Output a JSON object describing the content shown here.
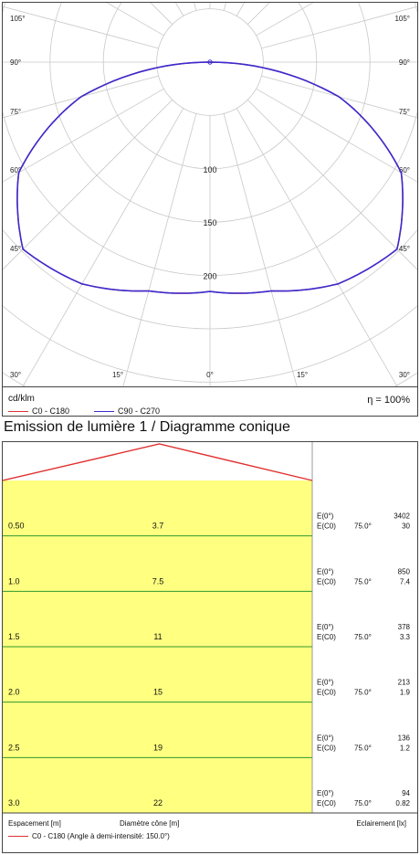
{
  "polar": {
    "unit_label": "cd/klm",
    "efficiency_label": "η = 100%",
    "angle_labels_left": [
      "105°",
      "90°",
      "75°",
      "60°",
      "45°",
      "30°"
    ],
    "angle_labels_right": [
      "105°",
      "90°",
      "75°",
      "60°",
      "45°",
      "30°"
    ],
    "angle_labels_bottom": [
      "15°",
      "0°",
      "15°"
    ],
    "radial_labels": [
      "100",
      "150",
      "200"
    ],
    "legend": [
      {
        "label": "C0 - C180",
        "color": "#e03030"
      },
      {
        "label": "C90 - C270",
        "color": "#3a2bd0"
      }
    ]
  },
  "chart_data": [
    {
      "type": "polar-line",
      "unit": "cd/klm",
      "efficiency": "100%",
      "radial_ticks": [
        100,
        150,
        200
      ],
      "angle_ticks_deg": [
        0,
        15,
        30,
        45,
        60,
        75,
        90,
        105
      ],
      "series": [
        {
          "name": "C0 - C180",
          "color": "#e03030",
          "angles_deg": [
            0,
            15,
            30,
            45,
            60,
            75,
            90
          ],
          "values": [
            215,
            222,
            240,
            248,
            207,
            125,
            0
          ]
        },
        {
          "name": "C90 - C270",
          "color": "#3a2bd0",
          "angles_deg": [
            0,
            15,
            30,
            45,
            60,
            75,
            90
          ],
          "values": [
            215,
            222,
            240,
            248,
            207,
            125,
            0
          ]
        }
      ]
    },
    {
      "type": "table",
      "title": "Emission de lumière 1 / Diagramme conique",
      "columns": [
        "Espacement [m]",
        "Diamètre cône [m]",
        "Eclairement [lx]"
      ],
      "half_intensity_angle": "150.0°",
      "rows": [
        {
          "distance": "0.50",
          "diameter": "3.7",
          "e0": "3402",
          "ec0": "30"
        },
        {
          "distance": "1.0",
          "diameter": "7.5",
          "e0": "850",
          "ec0": "7.4"
        },
        {
          "distance": "1.5",
          "diameter": "11",
          "e0": "378",
          "ec0": "3.3"
        },
        {
          "distance": "2.0",
          "diameter": "15",
          "e0": "213",
          "ec0": "1.9"
        },
        {
          "distance": "2.5",
          "diameter": "19",
          "e0": "136",
          "ec0": "1.2"
        },
        {
          "distance": "3.0",
          "diameter": "22",
          "e0": "94",
          "ec0": "0.82"
        }
      ],
      "e0_label": "E(0°)",
      "ec0_label": "E(C0)",
      "ec0_angle": "75.0°"
    }
  ],
  "cone": {
    "title": "Emission de lumière 1 / Diagramme conique",
    "footer_spacing": "Espacement [m]",
    "footer_diameter": "Diamètre cône [m]",
    "footer_illuminance": "Eclairement [lx]",
    "legend_label": "C0 - C180 (Angle à demi-intensité: 150.0°)",
    "legend_color": "#e03030",
    "fill_color": "#ffff80",
    "grid_color": "#2f9a2f"
  }
}
